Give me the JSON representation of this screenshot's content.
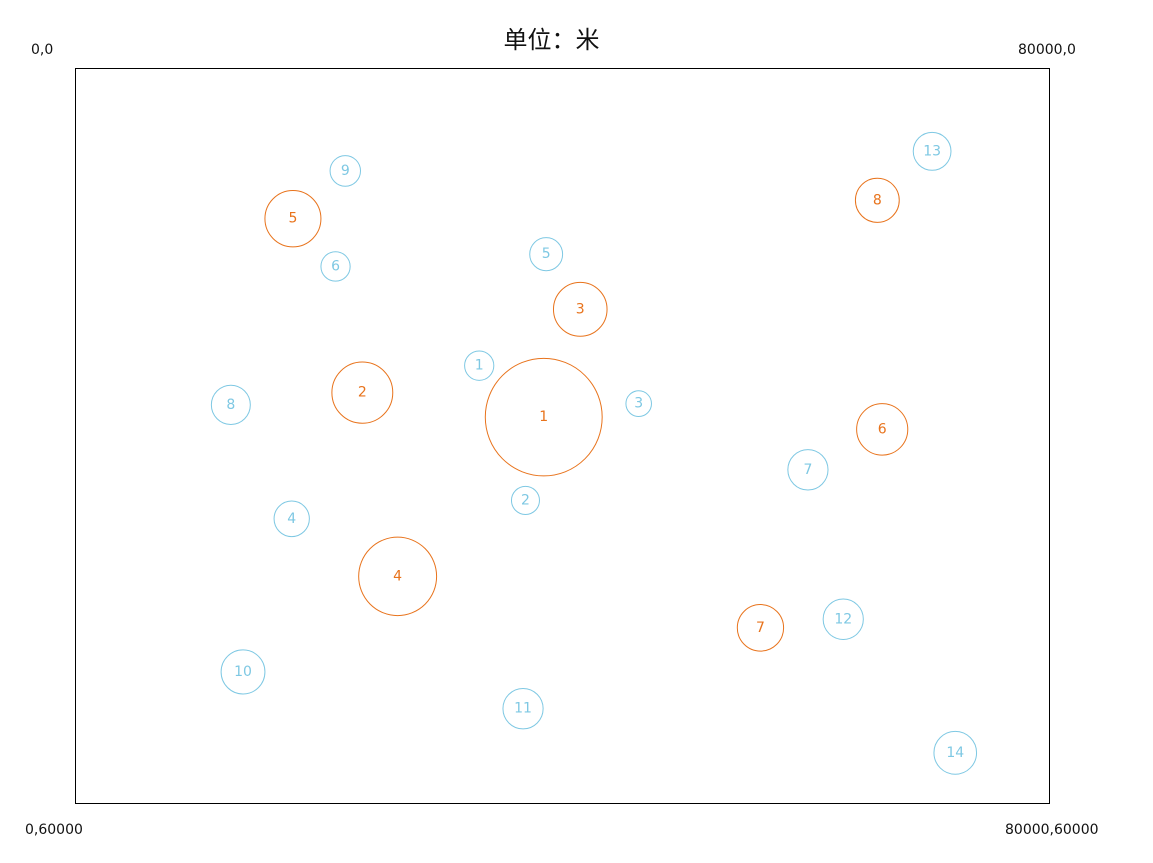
{
  "title": "单位：米",
  "corners": {
    "top_left": "0,0",
    "top_right": "80000,0",
    "bottom_left": "0,60000",
    "bottom_right": "80000,60000"
  },
  "colors": {
    "orange": "#e8731c",
    "blue": "#7ec8e3",
    "frame": "#000000"
  },
  "orange_circles": [
    {
      "label": "1",
      "x": 38500,
      "y": 28500,
      "r": 4800
    },
    {
      "label": "2",
      "x": 23600,
      "y": 26500,
      "r": 2500
    },
    {
      "label": "3",
      "x": 41500,
      "y": 19700,
      "r": 2200
    },
    {
      "label": "4",
      "x": 26500,
      "y": 41500,
      "r": 3200
    },
    {
      "label": "5",
      "x": 17900,
      "y": 12300,
      "r": 2300
    },
    {
      "label": "6",
      "x": 66300,
      "y": 29500,
      "r": 2100
    },
    {
      "label": "7",
      "x": 56300,
      "y": 45700,
      "r": 1900
    },
    {
      "label": "8",
      "x": 65900,
      "y": 10800,
      "r": 1800
    }
  ],
  "blue_circles": [
    {
      "label": "1",
      "x": 33200,
      "y": 24300,
      "r": 1200
    },
    {
      "label": "2",
      "x": 37000,
      "y": 35300,
      "r": 1150
    },
    {
      "label": "3",
      "x": 46300,
      "y": 27400,
      "r": 1050
    },
    {
      "label": "4",
      "x": 17800,
      "y": 36800,
      "r": 1450
    },
    {
      "label": "5",
      "x": 38700,
      "y": 15200,
      "r": 1350
    },
    {
      "label": "6",
      "x": 21400,
      "y": 16200,
      "r": 1200
    },
    {
      "label": "7",
      "x": 60200,
      "y": 32800,
      "r": 1650
    },
    {
      "label": "8",
      "x": 12800,
      "y": 27500,
      "r": 1600
    },
    {
      "label": "9",
      "x": 22200,
      "y": 8400,
      "r": 1250
    },
    {
      "label": "10",
      "x": 13800,
      "y": 49300,
      "r": 1800
    },
    {
      "label": "11",
      "x": 36800,
      "y": 52300,
      "r": 1650
    },
    {
      "label": "12",
      "x": 63100,
      "y": 45000,
      "r": 1650
    },
    {
      "label": "13",
      "x": 70400,
      "y": 6800,
      "r": 1550
    },
    {
      "label": "14",
      "x": 72300,
      "y": 55900,
      "r": 1750
    }
  ]
}
